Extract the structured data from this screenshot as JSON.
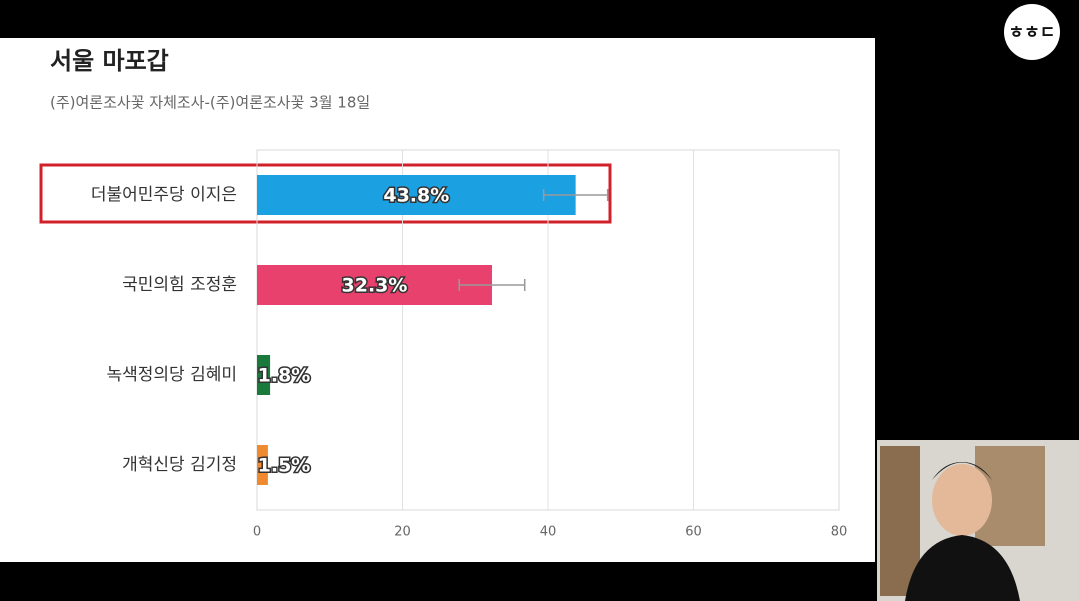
{
  "logo": "ㅎㅎㄷ",
  "chart_data": {
    "type": "bar",
    "orientation": "horizontal",
    "title": "서울 마포갑",
    "subtitle": "(주)여론조사꽃 자체조사-(주)여론조사꽃 3월 18일",
    "categories": [
      "더불어민주당 이지은",
      "국민의힘 조정훈",
      "녹색정의당 김혜미",
      "개혁신당 김기정"
    ],
    "values": [
      43.8,
      32.3,
      1.8,
      1.5
    ],
    "value_labels": [
      "43.8%",
      "32.3%",
      "1.8%",
      "1.5%"
    ],
    "errors": [
      4.4,
      4.5,
      null,
      null
    ],
    "colors": [
      "#1ba1e2",
      "#e8416e",
      "#1a7a3c",
      "#f08a30"
    ],
    "xlim": [
      0,
      80
    ],
    "xticks": [
      0,
      20,
      40,
      60,
      80
    ],
    "grid": true
  }
}
